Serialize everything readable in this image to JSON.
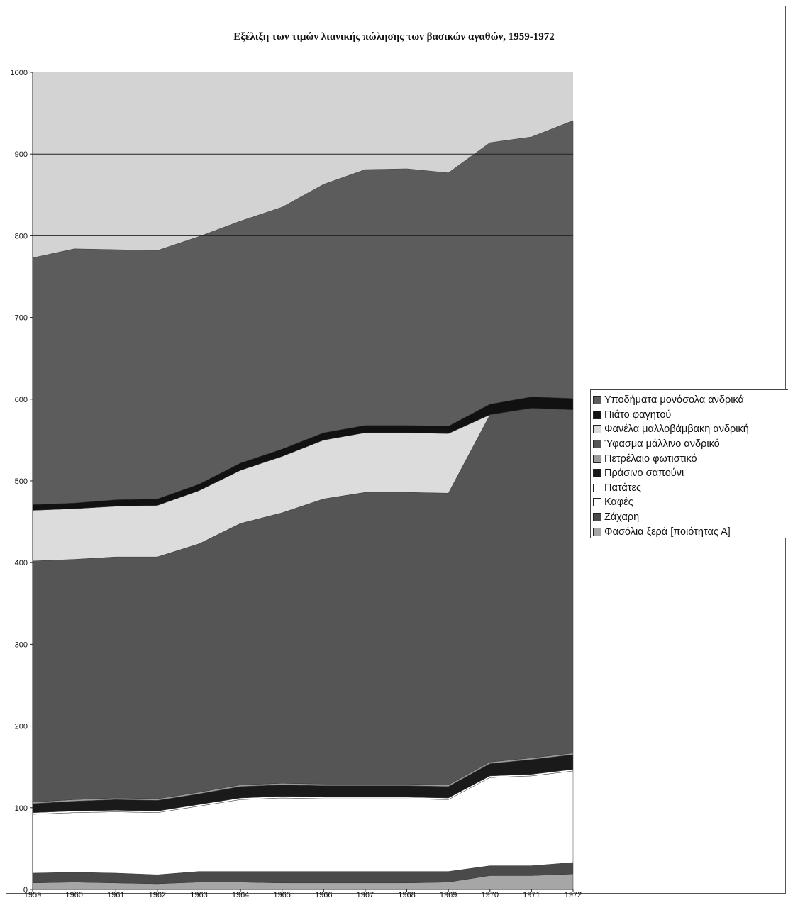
{
  "chart_data": {
    "type": "area",
    "stacked": true,
    "title": "Εξέλιξη των τιμών λιανικής πώλησης των βασικών αγαθών, 1959-1972",
    "xlabel": "",
    "ylabel": "",
    "x": [
      "1959",
      "1960",
      "1961",
      "1962",
      "1963",
      "1964",
      "1965",
      "1966",
      "1967",
      "1968",
      "1969",
      "1970",
      "1971",
      "1972"
    ],
    "ylim": [
      0,
      1000
    ],
    "yticks": [
      0,
      100,
      200,
      300,
      400,
      500,
      600,
      700,
      800,
      900,
      1000
    ],
    "grid": "horizontal at 800 and 900",
    "legend_position": "right",
    "series": [
      {
        "name": "Φασόλια ξερά [ποιότητας Α]",
        "color": "#a6a6a6",
        "values": [
          8,
          9,
          8,
          7,
          9,
          9,
          8,
          8,
          8,
          8,
          9,
          17,
          17,
          19
        ]
      },
      {
        "name": "Ζάχαρη",
        "color": "#4a4a4a",
        "values": [
          12,
          12,
          12,
          11,
          13,
          13,
          14,
          14,
          14,
          14,
          13,
          12,
          12,
          14
        ]
      },
      {
        "name": "Καφές",
        "color": "#ffffff",
        "values": [
          72,
          73,
          75,
          76,
          80,
          88,
          90,
          89,
          89,
          89,
          88,
          108,
          110,
          112
        ]
      },
      {
        "name": "Πατάτες",
        "color": "#ffffff",
        "values": [
          2,
          2,
          2,
          2,
          2,
          2,
          2,
          2,
          2,
          2,
          2,
          2,
          2,
          2
        ]
      },
      {
        "name": "Πράσινο σαπούνι",
        "color": "#1a1a1a",
        "values": [
          11,
          12,
          13,
          13,
          13,
          14,
          14,
          14,
          14,
          14,
          14,
          15,
          18,
          18
        ]
      },
      {
        "name": "Πετρέλαιο φωτιστικό",
        "color": "#9a9a9a",
        "values": [
          2,
          2,
          2,
          2,
          2,
          2,
          2,
          2,
          2,
          2,
          2,
          2,
          2,
          2
        ]
      },
      {
        "name": "Ύφασμα μάλλινο ανδρικό",
        "color": "#555555",
        "values": [
          295,
          294,
          295,
          296,
          304,
          320,
          331,
          349,
          357,
          357,
          357,
          425,
          428,
          420
        ]
      },
      {
        "name": "Φανέλα μαλλοβάμβακη ανδρική",
        "color": "#dcdcdc",
        "values": [
          62,
          62,
          62,
          63,
          65,
          65,
          69,
          72,
          73,
          73,
          73,
          0,
          0,
          0
        ]
      },
      {
        "name": "Πιάτο φαγητού",
        "color": "#111111",
        "values": [
          7,
          7,
          8,
          8,
          8,
          9,
          9,
          9,
          9,
          9,
          9,
          13,
          14,
          14
        ]
      },
      {
        "name": "Υποδήματα μονόσολα ανδρικά",
        "color": "#5c5c5c",
        "values": [
          302,
          311,
          306,
          304,
          303,
          296,
          296,
          304,
          313,
          314,
          310,
          320,
          318,
          340
        ]
      }
    ],
    "background_color": "#d3d3d3"
  }
}
